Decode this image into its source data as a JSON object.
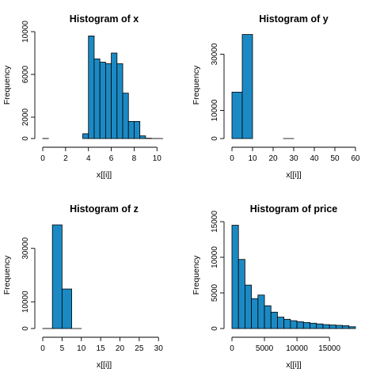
{
  "chart_data": [
    {
      "type": "bar",
      "title": "Histogram of x",
      "xlabel": "x[[i]]",
      "ylabel": "Frequency",
      "xlim": [
        0,
        10.74
      ],
      "ylim": [
        0,
        10000
      ],
      "xticks": [
        0,
        2,
        4,
        6,
        8,
        10
      ],
      "yticks": [
        0,
        2000,
        6000,
        10000
      ],
      "bins": [
        {
          "x0": 0.0,
          "x1": 0.5,
          "count": 8
        },
        {
          "x0": 0.5,
          "x1": 1.0,
          "count": 0
        },
        {
          "x0": 1.0,
          "x1": 1.5,
          "count": 0
        },
        {
          "x0": 1.5,
          "x1": 2.0,
          "count": 0
        },
        {
          "x0": 2.0,
          "x1": 2.5,
          "count": 0
        },
        {
          "x0": 2.5,
          "x1": 3.0,
          "count": 0
        },
        {
          "x0": 3.0,
          "x1": 3.5,
          "count": 0
        },
        {
          "x0": 3.5,
          "x1": 4.0,
          "count": 450
        },
        {
          "x0": 4.0,
          "x1": 4.5,
          "count": 9600
        },
        {
          "x0": 4.5,
          "x1": 5.0,
          "count": 7450
        },
        {
          "x0": 5.0,
          "x1": 5.5,
          "count": 7150
        },
        {
          "x0": 5.5,
          "x1": 6.0,
          "count": 7000
        },
        {
          "x0": 6.0,
          "x1": 6.5,
          "count": 8000
        },
        {
          "x0": 6.5,
          "x1": 7.0,
          "count": 7000
        },
        {
          "x0": 7.0,
          "x1": 7.5,
          "count": 4250
        },
        {
          "x0": 7.5,
          "x1": 8.0,
          "count": 1600
        },
        {
          "x0": 8.0,
          "x1": 8.5,
          "count": 1600
        },
        {
          "x0": 8.5,
          "x1": 9.0,
          "count": 250
        },
        {
          "x0": 9.0,
          "x1": 9.5,
          "count": 30
        },
        {
          "x0": 9.5,
          "x1": 10.0,
          "count": 5
        },
        {
          "x0": 10.0,
          "x1": 10.5,
          "count": 2
        }
      ]
    },
    {
      "type": "bar",
      "title": "Histogram of y",
      "xlabel": "x[[i]]",
      "ylabel": "Frequency",
      "xlim": [
        0,
        60
      ],
      "ylim": [
        0,
        38000
      ],
      "xticks": [
        0,
        10,
        20,
        30,
        40,
        50,
        60
      ],
      "yticks": [
        0,
        10000,
        30000
      ],
      "bins": [
        {
          "x0": 0,
          "x1": 5,
          "count": 16500
        },
        {
          "x0": 5,
          "x1": 10,
          "count": 37000
        },
        {
          "x0": 10,
          "x1": 15,
          "count": 0
        },
        {
          "x0": 15,
          "x1": 20,
          "count": 0
        },
        {
          "x0": 20,
          "x1": 25,
          "count": 0
        },
        {
          "x0": 25,
          "x1": 30,
          "count": 2
        },
        {
          "x0": 30,
          "x1": 35,
          "count": 1
        },
        {
          "x0": 35,
          "x1": 40,
          "count": 0
        },
        {
          "x0": 40,
          "x1": 45,
          "count": 0
        },
        {
          "x0": 45,
          "x1": 50,
          "count": 0
        },
        {
          "x0": 50,
          "x1": 55,
          "count": 0
        },
        {
          "x0": 55,
          "x1": 60,
          "count": 1
        }
      ]
    },
    {
      "type": "bar",
      "title": "Histogram of z",
      "xlabel": "x[[i]]",
      "ylabel": "Frequency",
      "xlim": [
        0,
        31.8
      ],
      "ylim": [
        0,
        40000
      ],
      "xticks": [
        0,
        5,
        10,
        15,
        20,
        25,
        30
      ],
      "yticks": [
        0,
        10000,
        30000
      ],
      "bins": [
        {
          "x0": 0.0,
          "x1": 2.5,
          "count": 20
        },
        {
          "x0": 2.5,
          "x1": 5.0,
          "count": 38800
        },
        {
          "x0": 5.0,
          "x1": 7.5,
          "count": 14800
        },
        {
          "x0": 7.5,
          "x1": 10.0,
          "count": 5
        },
        {
          "x0": 10.0,
          "x1": 12.5,
          "count": 0
        },
        {
          "x0": 12.5,
          "x1": 15.0,
          "count": 0
        },
        {
          "x0": 15.0,
          "x1": 17.5,
          "count": 0
        },
        {
          "x0": 17.5,
          "x1": 20.0,
          "count": 0
        },
        {
          "x0": 20.0,
          "x1": 22.5,
          "count": 0
        },
        {
          "x0": 22.5,
          "x1": 25.0,
          "count": 0
        },
        {
          "x0": 25.0,
          "x1": 27.5,
          "count": 0
        },
        {
          "x0": 27.5,
          "x1": 30.0,
          "count": 0
        },
        {
          "x0": 30.0,
          "x1": 32.5,
          "count": 1
        }
      ]
    },
    {
      "type": "bar",
      "title": "Histogram of price",
      "xlabel": "x[[i]]",
      "ylabel": "Frequency",
      "xlim": [
        0,
        19000
      ],
      "ylim": [
        0,
        15000
      ],
      "xticks": [
        0,
        5000,
        10000,
        15000
      ],
      "yticks": [
        0,
        5000,
        10000,
        15000
      ],
      "bins": [
        {
          "x0": 0,
          "x1": 1000,
          "count": 14500
        },
        {
          "x0": 1000,
          "x1": 2000,
          "count": 9700
        },
        {
          "x0": 2000,
          "x1": 3000,
          "count": 6100
        },
        {
          "x0": 3000,
          "x1": 4000,
          "count": 4200
        },
        {
          "x0": 4000,
          "x1": 5000,
          "count": 4700
        },
        {
          "x0": 5000,
          "x1": 6000,
          "count": 3200
        },
        {
          "x0": 6000,
          "x1": 7000,
          "count": 2300
        },
        {
          "x0": 7000,
          "x1": 8000,
          "count": 1600
        },
        {
          "x0": 8000,
          "x1": 9000,
          "count": 1300
        },
        {
          "x0": 9000,
          "x1": 10000,
          "count": 1100
        },
        {
          "x0": 10000,
          "x1": 11000,
          "count": 950
        },
        {
          "x0": 11000,
          "x1": 12000,
          "count": 850
        },
        {
          "x0": 12000,
          "x1": 13000,
          "count": 750
        },
        {
          "x0": 13000,
          "x1": 14000,
          "count": 650
        },
        {
          "x0": 14000,
          "x1": 15000,
          "count": 550
        },
        {
          "x0": 15000,
          "x1": 16000,
          "count": 500
        },
        {
          "x0": 16000,
          "x1": 17000,
          "count": 450
        },
        {
          "x0": 17000,
          "x1": 18000,
          "count": 400
        },
        {
          "x0": 18000,
          "x1": 19000,
          "count": 250
        }
      ]
    }
  ]
}
